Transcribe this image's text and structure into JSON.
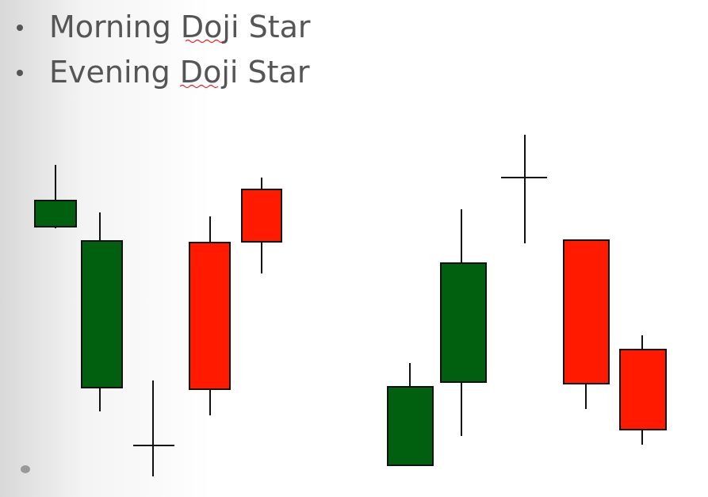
{
  "bullets": [
    "Morning Doji Star",
    "Evening Doji Star"
  ]
}
